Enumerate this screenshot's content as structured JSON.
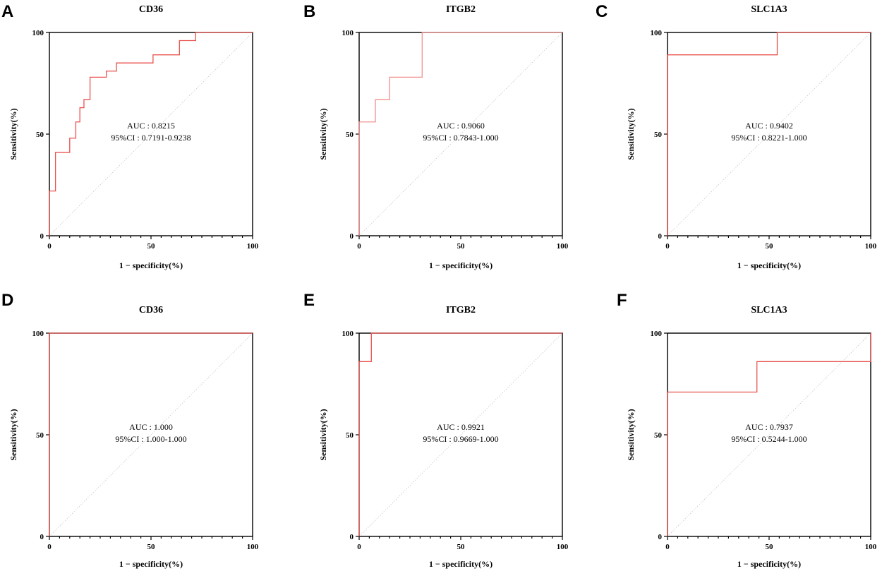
{
  "colors": {
    "roc_line": "#e8534e",
    "roc_line_light": "#f0908c",
    "diagonal": "#c8c8c8"
  },
  "chart_data": [
    {
      "letter": "A",
      "type": "line",
      "title": "CD36",
      "xlabel": "1 − specificity(%)",
      "ylabel": "Sensitivity(%)",
      "xlim": [
        0,
        100
      ],
      "ylim": [
        0,
        100
      ],
      "xticks": [
        "0",
        "50",
        "100"
      ],
      "yticks": [
        "0",
        "50",
        "100"
      ],
      "auc_label": "AUC : 0.8215",
      "ci_label": "95%CI : 0.7191-0.9238",
      "x": [
        0,
        0,
        3,
        3,
        10,
        10,
        13,
        13,
        15,
        15,
        17,
        17,
        20,
        20,
        28,
        28,
        33,
        33,
        51,
        51,
        64,
        64,
        72,
        72,
        100
      ],
      "y": [
        0,
        22,
        22,
        41,
        41,
        48,
        48,
        56,
        56,
        63,
        63,
        67,
        67,
        78,
        78,
        81,
        81,
        85,
        85,
        89,
        89,
        96,
        96,
        100,
        100
      ]
    },
    {
      "letter": "B",
      "type": "line",
      "title": "ITGB2",
      "xlabel": "1 − specificity(%)",
      "ylabel": "Sensitivity(%)",
      "xlim": [
        0,
        100
      ],
      "ylim": [
        0,
        100
      ],
      "xticks": [
        "0",
        "50",
        "100"
      ],
      "yticks": [
        "0",
        "50",
        "100"
      ],
      "auc_label": "AUC : 0.9060",
      "ci_label": "95%CI : 0.7843-1.000",
      "light": true,
      "x": [
        0,
        0,
        8,
        8,
        15,
        15,
        31,
        31,
        100
      ],
      "y": [
        0,
        56,
        56,
        67,
        67,
        78,
        78,
        100,
        100
      ]
    },
    {
      "letter": "C",
      "type": "line",
      "title": "SLC1A3",
      "xlabel": "1 − specificity(%)",
      "ylabel": "Sensitivity(%)",
      "xlim": [
        0,
        100
      ],
      "ylim": [
        0,
        100
      ],
      "xticks": [
        "0",
        "50",
        "100"
      ],
      "yticks": [
        "0",
        "50",
        "100"
      ],
      "auc_label": "AUC : 0.9402",
      "ci_label": "95%CI : 0.8221-1.000",
      "x": [
        0,
        0,
        54,
        54,
        100
      ],
      "y": [
        0,
        89,
        89,
        100,
        100
      ]
    },
    {
      "letter": "D",
      "type": "line",
      "title": "CD36",
      "xlabel": "1 − specificity(%)",
      "ylabel": "Sensitivity(%)",
      "xlim": [
        0,
        100
      ],
      "ylim": [
        0,
        100
      ],
      "xticks": [
        "0",
        "50",
        "100"
      ],
      "yticks": [
        "0",
        "50",
        "100"
      ],
      "auc_label": "AUC : 1.000",
      "ci_label": "95%CI : 1.000-1.000",
      "x": [
        0,
        0,
        100
      ],
      "y": [
        0,
        100,
        100
      ]
    },
    {
      "letter": "E",
      "type": "line",
      "title": "ITGB2",
      "xlabel": "1 − specificity(%)",
      "ylabel": "Sensitivity(%)",
      "xlim": [
        0,
        100
      ],
      "ylim": [
        0,
        100
      ],
      "xticks": [
        "0",
        "50",
        "100"
      ],
      "yticks": [
        "0",
        "50",
        "100"
      ],
      "auc_label": "AUC : 0.9921",
      "ci_label": "95%CI : 0.9669-1.000",
      "x": [
        0,
        0,
        6,
        6,
        100
      ],
      "y": [
        0,
        86,
        86,
        100,
        100
      ]
    },
    {
      "letter": "F",
      "type": "line",
      "title": "SLC1A3",
      "xlabel": "1 − specificity(%)",
      "ylabel": "Sensitivity(%)",
      "xlim": [
        0,
        100
      ],
      "ylim": [
        0,
        100
      ],
      "xticks": [
        "0",
        "50",
        "100"
      ],
      "yticks": [
        "0",
        "50",
        "100"
      ],
      "auc_label": "AUC : 0.7937",
      "ci_label": "95%CI : 0.5244-1.000",
      "x": [
        0,
        0,
        44,
        44,
        100,
        100
      ],
      "y": [
        0,
        71,
        71,
        86,
        86,
        100
      ]
    }
  ]
}
